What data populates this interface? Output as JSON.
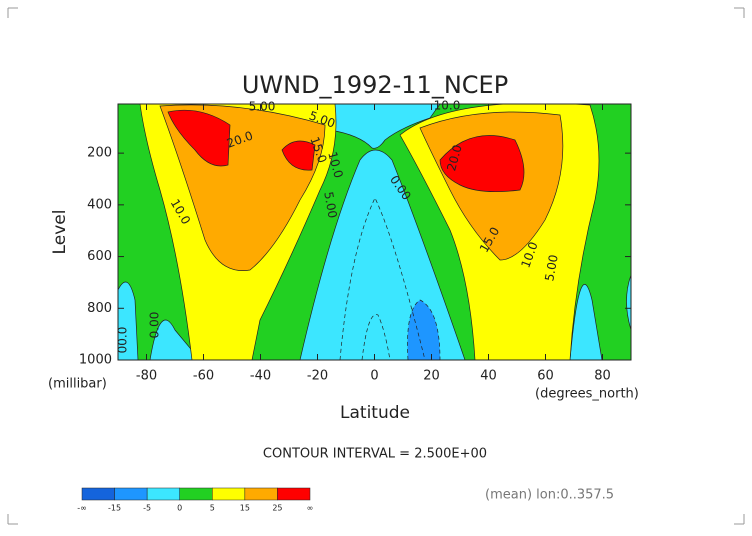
{
  "chart_data": {
    "type": "contour",
    "title": "UWND_1992-11_NCEP",
    "x_label": "Latitude",
    "y_label": "Level",
    "x_unit": "(degrees_north)",
    "y_unit": "(millibar)",
    "xlim": [
      -90,
      90
    ],
    "ylim": [
      1000,
      10
    ],
    "xticks": [
      -80,
      -60,
      -40,
      -20,
      0,
      20,
      40,
      60,
      80
    ],
    "yticks": [
      200,
      400,
      600,
      800,
      1000
    ],
    "contour_labels": [
      "5.00",
      "10.0",
      "20.0",
      "15.0",
      "10.0",
      "5.00",
      "0.00",
      "20.0",
      "15.0",
      "10.0",
      "5.00",
      "0.00",
      "00.0",
      "5.00",
      "10.0"
    ],
    "note": "CONTOUR INTERVAL = 2.500E+00",
    "footer": "(mean) lon:0..357.5",
    "colorbar": {
      "colors": [
        "#1464dc",
        "#1e96ff",
        "#3ce6ff",
        "#22d022",
        "#ffff00",
        "#ffaa00",
        "#ff0000"
      ],
      "labels": [
        "-∞",
        "-15",
        "-5",
        "0",
        "5",
        "15",
        "25",
        "∞"
      ]
    }
  }
}
